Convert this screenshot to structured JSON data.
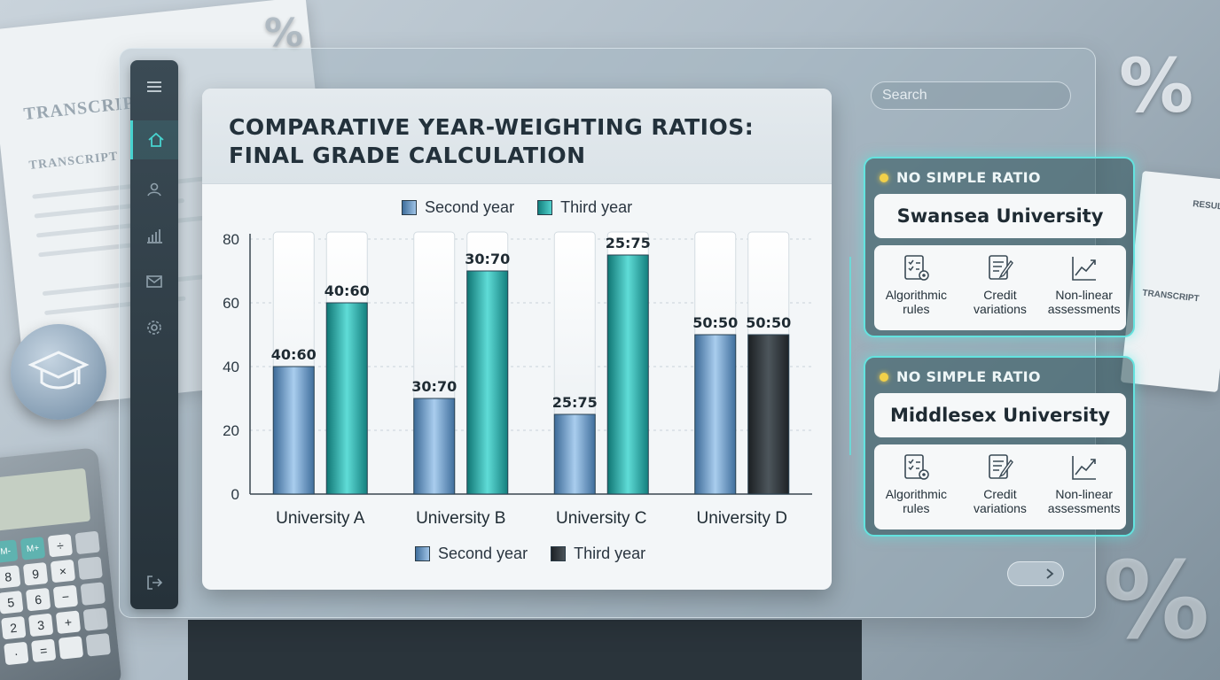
{
  "background": {
    "transcript_labels": [
      "TRANSCRIPT",
      "TRANSCRIPT"
    ],
    "right_paper": {
      "title": "RESULT",
      "subtitle": "TRANSCRIPT"
    },
    "percent_glyph": "%"
  },
  "sidebar": {
    "items": [
      {
        "icon": "menu-icon"
      },
      {
        "icon": "home-icon",
        "active": true
      },
      {
        "icon": "user-icon"
      },
      {
        "icon": "bar-chart-icon"
      },
      {
        "icon": "mail-icon"
      },
      {
        "icon": "gear-icon"
      },
      {
        "icon": "logout-icon"
      }
    ]
  },
  "search": {
    "placeholder": "Search"
  },
  "chart_data": {
    "type": "bar",
    "title": "Comparative Year-Weighting Ratios: Final Grade Calculation",
    "categories": [
      "University A",
      "University B",
      "University C",
      "University D"
    ],
    "series": [
      {
        "name": "Second year",
        "values": [
          40,
          30,
          25,
          50
        ],
        "labels": [
          "40:60",
          "30:70",
          "25:75",
          "50:50"
        ]
      },
      {
        "name": "Third year",
        "values": [
          60,
          70,
          75,
          50
        ],
        "labels": [
          "40:60",
          "30:70",
          "25:75",
          "50:50"
        ]
      }
    ],
    "top_legend": [
      "Second year",
      "Third year"
    ],
    "bottom_legend": [
      "Second year",
      "Third year"
    ],
    "ylim": [
      0,
      80
    ],
    "yticks": [
      0,
      20,
      40,
      60,
      80
    ],
    "grid": true,
    "colors": {
      "second_year": "#4f7fb0",
      "third_year": "#1f9a98",
      "third_year_alt": "#2a2f33"
    }
  },
  "info_panels": [
    {
      "badge": "NO SIMPLE RATIO",
      "university": "Swansea University",
      "features": [
        {
          "label": "Algorithmic rules",
          "icon": "checklist-gear-icon"
        },
        {
          "label": "Credit variations",
          "icon": "document-edit-icon"
        },
        {
          "label": "Non-linear assessments",
          "icon": "trend-line-icon"
        }
      ]
    },
    {
      "badge": "NO SIMPLE RATIO",
      "university": "Middlesex University",
      "features": [
        {
          "label": "Algorithmic rules",
          "icon": "checklist-gear-icon"
        },
        {
          "label": "Credit variations",
          "icon": "document-edit-icon"
        },
        {
          "label": "Non-linear assessments",
          "icon": "trend-line-icon"
        }
      ]
    }
  ],
  "calculator": {
    "keys": [
      "M-",
      "M+",
      "÷",
      "",
      "8",
      "9",
      "×",
      "",
      "5",
      "6",
      "−",
      "",
      "2",
      "3",
      "+",
      "",
      "·",
      "=",
      "",
      ""
    ]
  }
}
